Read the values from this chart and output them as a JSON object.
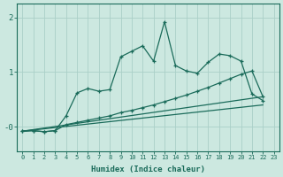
{
  "bg_color": "#cce8e0",
  "line_color": "#1a6b5a",
  "grid_color": "#aacfc8",
  "xlabel": "Humidex (Indice chaleur)",
  "xlim": [
    -0.5,
    23.5
  ],
  "ylim": [
    -0.45,
    2.25
  ],
  "ytick_vals": [
    0.0,
    1.0,
    2.0
  ],
  "ytick_labels": [
    "-0",
    "1",
    "2"
  ],
  "xticks": [
    0,
    1,
    2,
    3,
    4,
    5,
    6,
    7,
    8,
    9,
    10,
    11,
    12,
    13,
    14,
    15,
    16,
    17,
    18,
    19,
    20,
    21,
    22,
    23
  ],
  "line1_x": [
    0,
    1,
    2,
    3,
    4,
    5,
    6,
    7,
    8,
    9,
    10,
    11,
    12,
    13,
    14,
    15,
    16,
    17,
    18,
    19,
    20,
    21,
    22
  ],
  "line1_y": [
    -0.08,
    -0.07,
    -0.09,
    -0.07,
    0.2,
    0.62,
    0.7,
    0.65,
    0.68,
    1.28,
    1.38,
    1.48,
    1.2,
    1.92,
    1.12,
    1.02,
    0.98,
    1.18,
    1.33,
    1.3,
    1.2,
    0.6,
    0.48
  ],
  "line2_x": [
    0,
    1,
    2,
    3,
    4,
    5,
    6,
    7,
    8,
    9,
    10,
    11,
    12,
    13,
    14,
    15,
    16,
    17,
    18,
    19,
    20,
    21,
    22
  ],
  "line2_y": [
    -0.08,
    -0.07,
    -0.09,
    -0.07,
    0.04,
    0.08,
    0.12,
    0.16,
    0.2,
    0.26,
    0.3,
    0.35,
    0.4,
    0.46,
    0.52,
    0.58,
    0.65,
    0.72,
    0.8,
    0.88,
    0.96,
    1.02,
    0.55
  ],
  "line3_x": [
    0,
    22
  ],
  "line3_y": [
    -0.08,
    0.55
  ],
  "line4_x": [
    0,
    22
  ],
  "line4_y": [
    -0.08,
    0.4
  ]
}
